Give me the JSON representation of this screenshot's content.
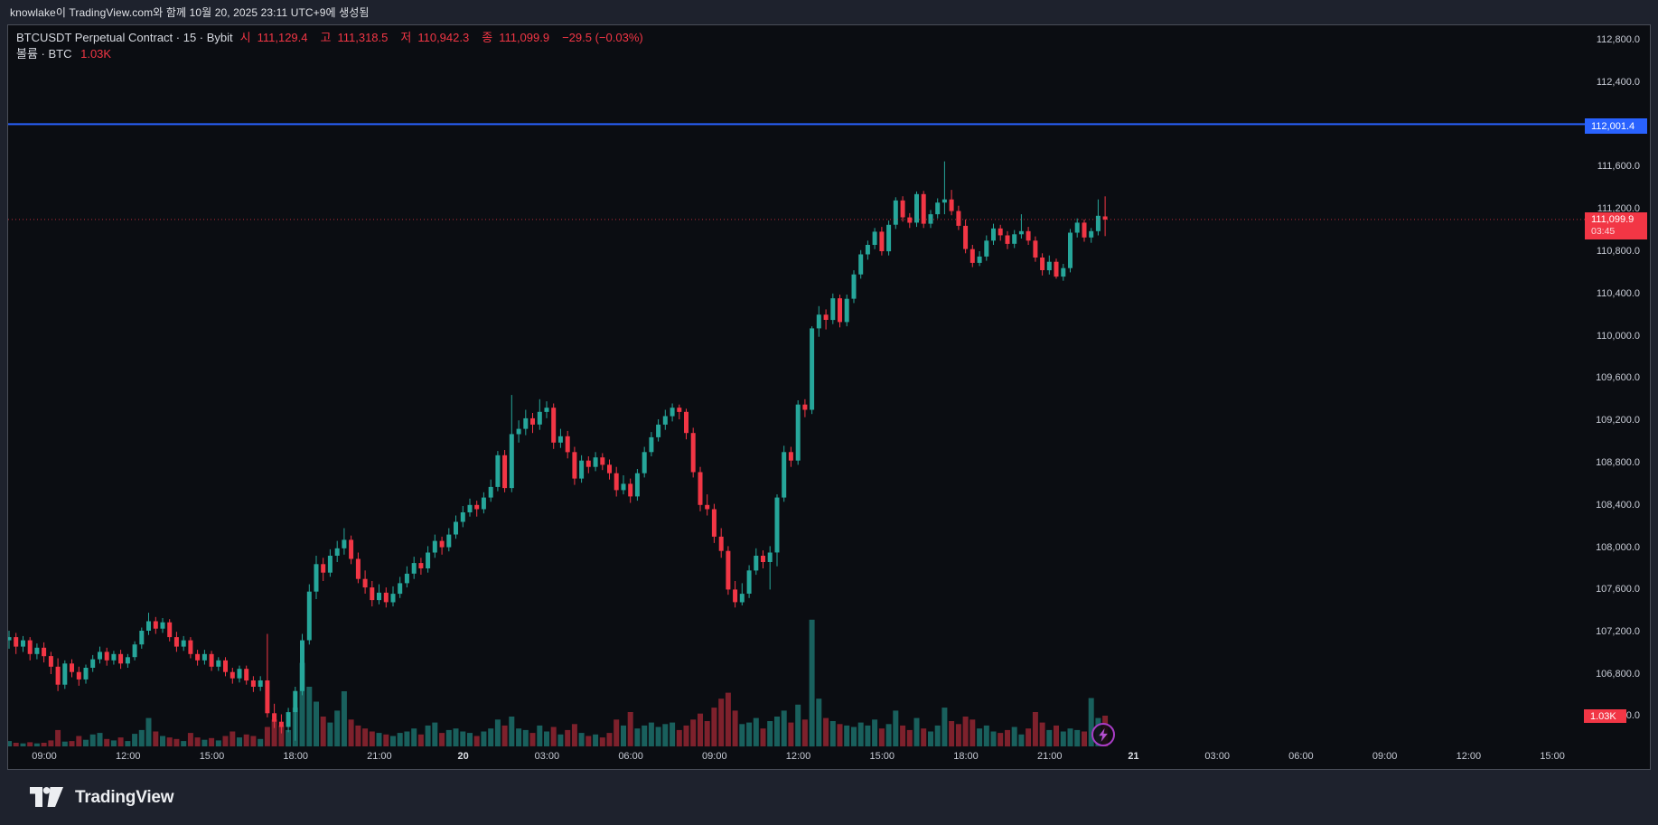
{
  "attribution": {
    "text": "knowlake이 TradingView.com와 함께 10월 20, 2025 23:11 UTC+9에 생성됨"
  },
  "header": {
    "title": "BTCUSDT Perpetual Contract · 15 · Bybit",
    "ohlc": {
      "open_label": "시",
      "open": "111,129.4",
      "high_label": "고",
      "high": "111,318.5",
      "low_label": "저",
      "low": "110,942.3",
      "close_label": "종",
      "close": "111,099.9",
      "change": "−29.5 (−0.03%)"
    },
    "volume_line": {
      "label": "볼륨 · BTC",
      "value": "1.03K"
    }
  },
  "price_scale": {
    "line_label": "112,001.4",
    "last_price": "111,099.9",
    "countdown": "03:45",
    "volume_current": "1.03K",
    "volume_zero": "0.0",
    "ticks": [
      {
        "price": 112800,
        "label": "112,800.0"
      },
      {
        "price": 112400,
        "label": "112,400.0"
      },
      {
        "price": 111600,
        "label": "111,600.0"
      },
      {
        "price": 111200,
        "label": "111,200.0"
      },
      {
        "price": 110800,
        "label": "110,800.0"
      },
      {
        "price": 110400,
        "label": "110,400.0"
      },
      {
        "price": 110000,
        "label": "110,000.0"
      },
      {
        "price": 109600,
        "label": "109,600.0"
      },
      {
        "price": 109200,
        "label": "109,200.0"
      },
      {
        "price": 108800,
        "label": "108,800.0"
      },
      {
        "price": 108400,
        "label": "108,400.0"
      },
      {
        "price": 108000,
        "label": "108,000.0"
      },
      {
        "price": 107600,
        "label": "107,600.0"
      },
      {
        "price": 107200,
        "label": "107,200.0"
      },
      {
        "price": 106800,
        "label": "106,800.0"
      }
    ]
  },
  "time_scale": {
    "labels": [
      {
        "t": "09:00",
        "b": false
      },
      {
        "t": "12:00",
        "b": false
      },
      {
        "t": "15:00",
        "b": false
      },
      {
        "t": "18:00",
        "b": false
      },
      {
        "t": "21:00",
        "b": false
      },
      {
        "t": "20",
        "b": true
      },
      {
        "t": "03:00",
        "b": false
      },
      {
        "t": "06:00",
        "b": false
      },
      {
        "t": "09:00",
        "b": false
      },
      {
        "t": "12:00",
        "b": false
      },
      {
        "t": "15:00",
        "b": false
      },
      {
        "t": "18:00",
        "b": false
      },
      {
        "t": "21:00",
        "b": false
      },
      {
        "t": "21",
        "b": true
      },
      {
        "t": "03:00",
        "b": false
      },
      {
        "t": "06:00",
        "b": false
      },
      {
        "t": "09:00",
        "b": false
      },
      {
        "t": "12:00",
        "b": false
      },
      {
        "t": "15:00",
        "b": false
      }
    ]
  },
  "footer": {
    "brand": "TradingView"
  },
  "colors": {
    "up": "#26a69a",
    "down": "#f23645",
    "vol_up": "rgba(38,166,154,0.55)",
    "vol_down": "rgba(242,54,69,0.5)",
    "price_line": "#2962ff",
    "last_price_line": "rgba(242,54,69,0.75)",
    "flash_purple": "#b44fd0"
  },
  "chart_data": {
    "type": "candlestick_with_volume",
    "symbol": "BTCUSDT Perpetual Contract",
    "exchange": "Bybit",
    "interval": "15",
    "horizontal_line_price": 112001.4,
    "last_price": 111099.9,
    "last_candle_ohlc": [
      111129.4,
      111318.5,
      110942.3,
      111099.9
    ],
    "last_volume_k": 1.03,
    "y_axis_range_approx": [
      106300,
      112950
    ],
    "grid": false,
    "candles_ohlc": [
      [
        107120,
        107210,
        107040,
        107150
      ],
      [
        107150,
        107190,
        106990,
        107060
      ],
      [
        107060,
        107160,
        107010,
        107120
      ],
      [
        107120,
        107150,
        106930,
        106990
      ],
      [
        106990,
        107090,
        106940,
        107050
      ],
      [
        107050,
        107100,
        106910,
        106970
      ],
      [
        106970,
        107010,
        106800,
        106870
      ],
      [
        106870,
        106950,
        106640,
        106700
      ],
      [
        106700,
        106930,
        106660,
        106900
      ],
      [
        106900,
        106940,
        106770,
        106820
      ],
      [
        106820,
        106870,
        106690,
        106750
      ],
      [
        106750,
        106890,
        106710,
        106860
      ],
      [
        106860,
        106980,
        106820,
        106940
      ],
      [
        106940,
        107060,
        106900,
        107010
      ],
      [
        107010,
        107050,
        106880,
        106930
      ],
      [
        106930,
        107020,
        106890,
        106990
      ],
      [
        106990,
        107030,
        106850,
        106900
      ],
      [
        106900,
        106990,
        106860,
        106960
      ],
      [
        106960,
        107110,
        106930,
        107080
      ],
      [
        107080,
        107240,
        107040,
        107210
      ],
      [
        107210,
        107380,
        107170,
        107300
      ],
      [
        107300,
        107340,
        107180,
        107230
      ],
      [
        107230,
        107330,
        107190,
        107290
      ],
      [
        107290,
        107320,
        107110,
        107150
      ],
      [
        107150,
        107200,
        107010,
        107060
      ],
      [
        107060,
        107160,
        107020,
        107120
      ],
      [
        107120,
        107150,
        106950,
        106990
      ],
      [
        106990,
        107030,
        106880,
        106930
      ],
      [
        106930,
        107030,
        106890,
        106990
      ],
      [
        106990,
        107020,
        106830,
        106870
      ],
      [
        106870,
        106960,
        106830,
        106930
      ],
      [
        106930,
        106960,
        106780,
        106820
      ],
      [
        106820,
        106860,
        106710,
        106760
      ],
      [
        106760,
        106880,
        106720,
        106850
      ],
      [
        106850,
        106880,
        106700,
        106740
      ],
      [
        106740,
        106780,
        106630,
        106680
      ],
      [
        106680,
        106780,
        106640,
        106740
      ],
      [
        106740,
        107180,
        106390,
        106430
      ],
      [
        106430,
        106520,
        106290,
        106350
      ],
      [
        106350,
        106420,
        106240,
        106300
      ],
      [
        106300,
        106480,
        106250,
        106440
      ],
      [
        106440,
        106680,
        106170,
        106640
      ],
      [
        106640,
        107180,
        106600,
        107120
      ],
      [
        107120,
        107650,
        107080,
        107580
      ],
      [
        107580,
        107920,
        107510,
        107840
      ],
      [
        107840,
        107900,
        107680,
        107760
      ],
      [
        107760,
        107980,
        107720,
        107920
      ],
      [
        107920,
        108060,
        107860,
        107990
      ],
      [
        107990,
        108180,
        107930,
        108070
      ],
      [
        108070,
        108110,
        107840,
        107890
      ],
      [
        107890,
        107950,
        107660,
        107700
      ],
      [
        107700,
        107780,
        107560,
        107620
      ],
      [
        107620,
        107680,
        107440,
        107500
      ],
      [
        107500,
        107650,
        107460,
        107570
      ],
      [
        107570,
        107620,
        107430,
        107480
      ],
      [
        107480,
        107630,
        107440,
        107560
      ],
      [
        107560,
        107720,
        107520,
        107660
      ],
      [
        107660,
        107820,
        107620,
        107750
      ],
      [
        107750,
        107910,
        107700,
        107850
      ],
      [
        107850,
        107900,
        107740,
        107800
      ],
      [
        107800,
        108010,
        107760,
        107950
      ],
      [
        107950,
        108120,
        107900,
        108060
      ],
      [
        108060,
        108100,
        107930,
        108000
      ],
      [
        108000,
        108180,
        107960,
        108120
      ],
      [
        108120,
        108300,
        108080,
        108240
      ],
      [
        108240,
        108390,
        108190,
        108330
      ],
      [
        108330,
        108460,
        108290,
        108400
      ],
      [
        108400,
        108440,
        108290,
        108360
      ],
      [
        108360,
        108520,
        108320,
        108470
      ],
      [
        108470,
        108640,
        108430,
        108570
      ],
      [
        108570,
        108910,
        108530,
        108870
      ],
      [
        108870,
        108920,
        108520,
        108560
      ],
      [
        108560,
        109440,
        108520,
        109070
      ],
      [
        109070,
        109200,
        108990,
        109120
      ],
      [
        109120,
        109300,
        109060,
        109220
      ],
      [
        109220,
        109270,
        109080,
        109160
      ],
      [
        109160,
        109400,
        109110,
        109280
      ],
      [
        109280,
        109380,
        109220,
        109320
      ],
      [
        109320,
        109360,
        108930,
        108990
      ],
      [
        108990,
        109120,
        108940,
        109050
      ],
      [
        109050,
        109100,
        108840,
        108900
      ],
      [
        108900,
        108950,
        108590,
        108650
      ],
      [
        108650,
        108870,
        108610,
        108820
      ],
      [
        108820,
        108860,
        108700,
        108760
      ],
      [
        108760,
        108900,
        108720,
        108850
      ],
      [
        108850,
        108890,
        108730,
        108780
      ],
      [
        108780,
        108830,
        108640,
        108700
      ],
      [
        108700,
        108760,
        108480,
        108540
      ],
      [
        108540,
        108680,
        108500,
        108600
      ],
      [
        108600,
        108650,
        108420,
        108480
      ],
      [
        108480,
        108740,
        108440,
        108700
      ],
      [
        108700,
        108950,
        108660,
        108900
      ],
      [
        108900,
        109090,
        108860,
        109040
      ],
      [
        109040,
        109210,
        109000,
        109160
      ],
      [
        109160,
        109300,
        109110,
        109240
      ],
      [
        109240,
        109360,
        109190,
        109320
      ],
      [
        109320,
        109350,
        109210,
        109280
      ],
      [
        109280,
        109310,
        109020,
        109080
      ],
      [
        109080,
        109130,
        108660,
        108710
      ],
      [
        108710,
        108760,
        108340,
        108400
      ],
      [
        108400,
        108500,
        108300,
        108360
      ],
      [
        108360,
        108410,
        108040,
        108100
      ],
      [
        108100,
        108180,
        107900,
        107965
      ],
      [
        107965,
        108010,
        107550,
        107600
      ],
      [
        107600,
        107680,
        107430,
        107480
      ],
      [
        107480,
        107660,
        107450,
        107560
      ],
      [
        107560,
        107830,
        107520,
        107780
      ],
      [
        107780,
        107990,
        107740,
        107920
      ],
      [
        107920,
        107970,
        107800,
        107860
      ],
      [
        107860,
        108010,
        107600,
        107950
      ],
      [
        107950,
        108500,
        107820,
        108470
      ],
      [
        108470,
        108960,
        108430,
        108900
      ],
      [
        108900,
        108950,
        108760,
        108820
      ],
      [
        108820,
        109390,
        108780,
        109350
      ],
      [
        109350,
        109400,
        109230,
        109300
      ],
      [
        109300,
        110090,
        109260,
        110070
      ],
      [
        110070,
        110280,
        109990,
        110200
      ],
      [
        110200,
        110250,
        110060,
        110150
      ],
      [
        110150,
        110400,
        110110,
        110355
      ],
      [
        110355,
        110390,
        110080,
        110130
      ],
      [
        110130,
        110390,
        110090,
        110350
      ],
      [
        110350,
        110620,
        110310,
        110580
      ],
      [
        110580,
        110810,
        110540,
        110770
      ],
      [
        110770,
        110900,
        110720,
        110860
      ],
      [
        110860,
        111020,
        110820,
        110985
      ],
      [
        110985,
        111030,
        110760,
        110800
      ],
      [
        110800,
        111090,
        110760,
        111050
      ],
      [
        111050,
        111310,
        111010,
        111280
      ],
      [
        111280,
        111320,
        111080,
        111120
      ],
      [
        111120,
        111160,
        111020,
        111070
      ],
      [
        111070,
        111365,
        111030,
        111340
      ],
      [
        111340,
        111370,
        111020,
        111060
      ],
      [
        111060,
        111190,
        111020,
        111150
      ],
      [
        111150,
        111300,
        111110,
        111260
      ],
      [
        111260,
        111650,
        111150,
        111290
      ],
      [
        111290,
        111380,
        111140,
        111180
      ],
      [
        111180,
        111230,
        111000,
        111040
      ],
      [
        111040,
        111100,
        110780,
        110820
      ],
      [
        110820,
        110860,
        110650,
        110690
      ],
      [
        110690,
        110800,
        110660,
        110750
      ],
      [
        110750,
        110950,
        110710,
        110900
      ],
      [
        110900,
        111060,
        110860,
        111015
      ],
      [
        111015,
        111050,
        110900,
        110950
      ],
      [
        110950,
        110990,
        110820,
        110870
      ],
      [
        110870,
        111000,
        110830,
        110960
      ],
      [
        110960,
        111150,
        110920,
        110990
      ],
      [
        110990,
        111030,
        110860,
        110900
      ],
      [
        110900,
        110940,
        110700,
        110740
      ],
      [
        110740,
        110780,
        110570,
        110620
      ],
      [
        110620,
        110760,
        110580,
        110700
      ],
      [
        110700,
        110730,
        110540,
        110560
      ],
      [
        110560,
        110680,
        110520,
        110640
      ],
      [
        110640,
        111010,
        110600,
        110975
      ],
      [
        110975,
        111110,
        110930,
        111070
      ],
      [
        111070,
        111100,
        110890,
        110930
      ],
      [
        110930,
        111020,
        110880,
        110990
      ],
      [
        110990,
        111290,
        110950,
        111135
      ],
      [
        111129.4,
        111318.5,
        110942.3,
        111099.9
      ]
    ],
    "volumes_k": [
      0.18,
      0.12,
      0.1,
      0.14,
      0.1,
      0.12,
      0.2,
      0.55,
      0.16,
      0.18,
      0.35,
      0.22,
      0.4,
      0.45,
      0.25,
      0.2,
      0.3,
      0.18,
      0.42,
      0.55,
      0.95,
      0.5,
      0.35,
      0.3,
      0.25,
      0.18,
      0.45,
      0.3,
      0.22,
      0.28,
      0.2,
      0.35,
      0.5,
      0.3,
      0.4,
      0.35,
      0.25,
      0.65,
      0.9,
      0.7,
      0.55,
      1.3,
      2.8,
      2.0,
      1.5,
      1.0,
      0.8,
      1.2,
      1.85,
      0.9,
      0.7,
      0.6,
      0.5,
      0.45,
      0.4,
      0.35,
      0.45,
      0.5,
      0.6,
      0.4,
      0.7,
      0.8,
      0.45,
      0.55,
      0.6,
      0.5,
      0.45,
      0.35,
      0.5,
      0.6,
      0.9,
      0.7,
      1.0,
      0.6,
      0.55,
      0.45,
      0.7,
      0.5,
      0.65,
      0.4,
      0.55,
      0.75,
      0.45,
      0.35,
      0.4,
      0.3,
      0.45,
      0.9,
      0.7,
      1.15,
      0.6,
      0.7,
      0.8,
      0.65,
      0.75,
      0.8,
      0.55,
      0.7,
      0.9,
      1.1,
      0.85,
      1.3,
      1.6,
      1.8,
      1.2,
      0.75,
      0.8,
      0.95,
      0.6,
      0.85,
      1.0,
      1.2,
      0.8,
      1.4,
      0.9,
      4.25,
      1.6,
      0.95,
      0.85,
      0.75,
      0.7,
      0.65,
      0.8,
      0.7,
      0.9,
      0.6,
      0.75,
      1.2,
      0.7,
      0.55,
      0.95,
      0.6,
      0.5,
      0.7,
      1.3,
      0.85,
      0.75,
      1.0,
      0.9,
      0.6,
      0.7,
      0.5,
      0.45,
      0.55,
      0.65,
      0.4,
      0.6,
      1.15,
      0.8,
      0.55,
      0.7,
      0.5,
      0.6,
      0.55,
      0.5,
      1.62,
      0.95,
      1.03
    ]
  }
}
